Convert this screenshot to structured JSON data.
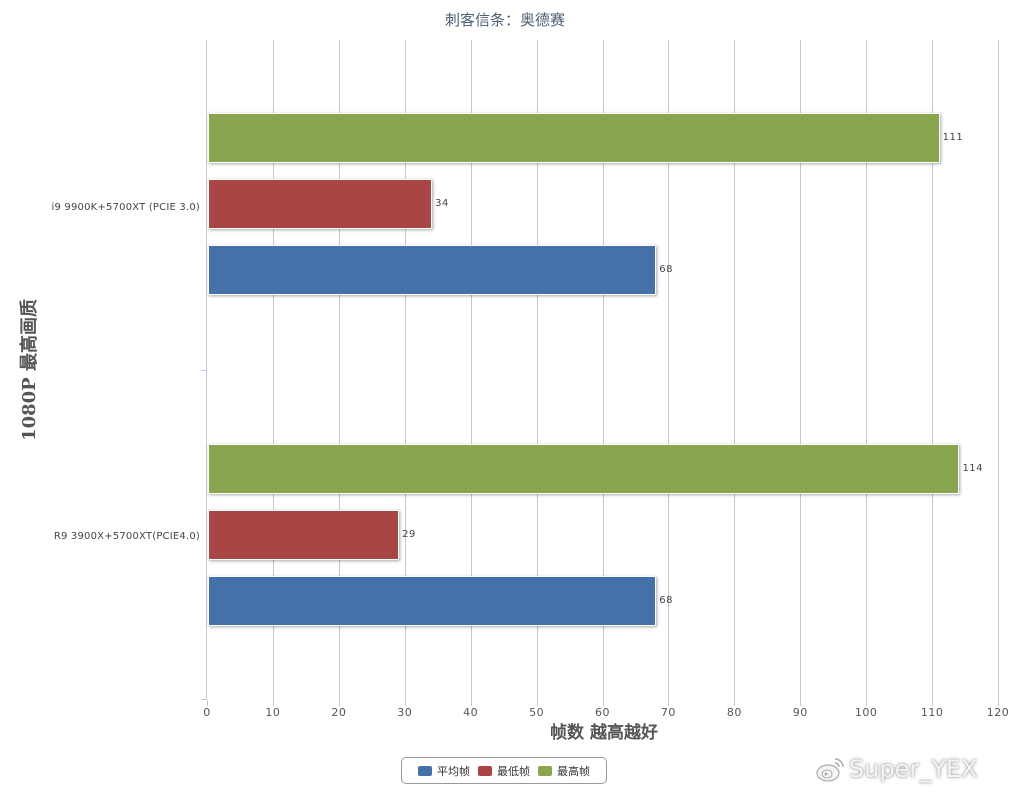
{
  "chart_data": {
    "type": "bar",
    "orientation": "horizontal",
    "title": "刺客信条：奥德赛",
    "xlabel": "帧数 越高越好",
    "ylabel": "1080P 最高画质",
    "xlim": [
      0,
      120
    ],
    "xticks": [
      0,
      10,
      20,
      30,
      40,
      50,
      60,
      70,
      80,
      90,
      100,
      110,
      120
    ],
    "grid": true,
    "legend_position": "bottom",
    "categories": [
      "i9 9900K+5700XT  (PCIE 3.0)",
      "R9 3900X+5700XT(PCIE4.0)"
    ],
    "series": [
      {
        "name": "平均帧",
        "color": "#4472a8",
        "values": [
          68,
          68
        ]
      },
      {
        "name": "最低帧",
        "color": "#a94645",
        "values": [
          34,
          29
        ]
      },
      {
        "name": "最高帧",
        "color": "#89a54e",
        "values": [
          111,
          114
        ]
      }
    ]
  },
  "labels": {
    "title": "刺客信条：奥德赛",
    "ytitle": "1080P 最高画质",
    "xtitle": "帧数 越高越好",
    "cat0": "i9 9900K+5700XT  (PCIE 3.0)",
    "cat1": "R9 3900X+5700XT(PCIE4.0)",
    "ticks": [
      "0",
      "10",
      "20",
      "30",
      "40",
      "50",
      "60",
      "70",
      "80",
      "90",
      "100",
      "110",
      "120"
    ],
    "legend": [
      "平均帧",
      "最低帧",
      "最高帧"
    ],
    "watermark": "Super_YEX"
  }
}
